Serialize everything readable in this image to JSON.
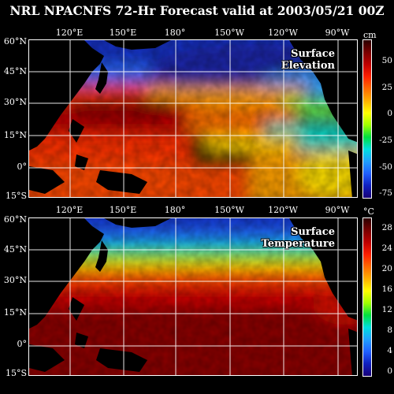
{
  "header": {
    "title": "NRL NPACNFS 72-Hr Forecast valid at 2003/05/21 00Z"
  },
  "lon_labels": [
    "120°E",
    "150°E",
    "180°",
    "150°W",
    "120°W",
    "90°W"
  ],
  "lat_labels": [
    "60°N",
    "45°N",
    "30°N",
    "15°N",
    "0°",
    "15°S"
  ],
  "panels": [
    {
      "title_lines": [
        "Surface",
        "Elevation"
      ],
      "unit": "cm",
      "colorbar_ticks": [
        "50",
        "25",
        "0",
        "-25",
        "-50",
        "-75"
      ],
      "colorbar_range": [
        -80,
        70
      ]
    },
    {
      "title_lines": [
        "Surface",
        "Temperature"
      ],
      "unit": "°C",
      "colorbar_ticks": [
        "28",
        "24",
        "20",
        "16",
        "12",
        "8",
        "4",
        "0"
      ],
      "colorbar_range": [
        -1,
        30
      ]
    }
  ],
  "colors": {
    "background": "#000000",
    "colorbar_scale": [
      "#2a0000",
      "#7a0000",
      "#c00000",
      "#ff2000",
      "#ff6a00",
      "#ffb000",
      "#ffff00",
      "#a0ff00",
      "#00e040",
      "#00e0e0",
      "#20a0ff",
      "#2060ff",
      "#1020c0",
      "#180078"
    ]
  }
}
